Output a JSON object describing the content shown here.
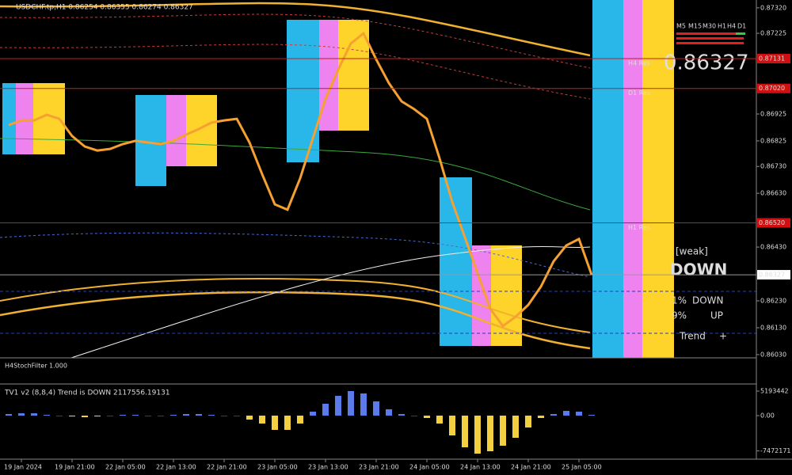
{
  "chart_data": [
    {
      "type": "line",
      "title": "USDCHF.tp,H1  0.86254 0.86355 0.86274 0.86327",
      "categories": [
        null,
        "19 Jan 2024",
        null,
        null,
        null,
        "19 Jan 21:00",
        null,
        null,
        null,
        "22 Jan 05:00",
        null,
        null,
        null,
        "22 Jan 13:00",
        null,
        null,
        null,
        "22 Jan 21:00",
        null,
        null,
        null,
        "23 Jan 05:00",
        null,
        null,
        null,
        "23 Jan 13:00",
        null,
        null,
        null,
        "23 Jan 21:00",
        null,
        null,
        null,
        "24 Jan 05:00",
        null,
        null,
        null,
        "24 Jan 13:00",
        null,
        null,
        null,
        "24 Jan 21:00",
        null,
        null,
        null,
        "25 Jan 05:00",
        null
      ],
      "values": [
        0.86884,
        0.86901,
        0.86901,
        0.86922,
        0.86907,
        0.86843,
        0.86804,
        0.86789,
        0.86795,
        0.86813,
        0.86825,
        0.86819,
        0.86813,
        0.86825,
        0.86848,
        0.86869,
        0.86893,
        0.86901,
        0.86907,
        0.86819,
        0.86701,
        0.86589,
        0.86569,
        0.86686,
        0.86834,
        0.86981,
        0.8709,
        0.87187,
        0.87225,
        0.87128,
        0.8704,
        0.86972,
        0.86943,
        0.86907,
        0.8676,
        0.86598,
        0.86466,
        0.86333,
        0.862,
        0.86136,
        0.86171,
        0.86215,
        0.86283,
        0.86377,
        0.86436,
        0.8646,
        0.86327
      ],
      "color": "#f5a030",
      "ylim": [
        0.86018,
        0.87349
      ],
      "yticks": [
        {
          "value": 0.8732,
          "label": "0.87320"
        },
        {
          "value": 0.87225,
          "label": "0.87225"
        },
        {
          "value": 0.86925,
          "label": "0.86925"
        },
        {
          "value": 0.86825,
          "label": "0.86825"
        },
        {
          "value": 0.8673,
          "label": "0.86730"
        },
        {
          "value": 0.8663,
          "label": "0.86630"
        },
        {
          "value": 0.8643,
          "label": "0.86430"
        },
        {
          "value": 0.8623,
          "label": "0.86230"
        },
        {
          "value": 0.8613,
          "label": "0.86130"
        },
        {
          "value": 0.8603,
          "label": "0.86030"
        }
      ],
      "levels": [
        {
          "name": "H4 Res",
          "value": 0.87131,
          "label": "0.87131"
        },
        {
          "name": "D1 Res",
          "value": 0.8702,
          "label": "0.87020"
        },
        {
          "name": "H1 Res",
          "value": 0.8652,
          "label": "0.86520"
        }
      ],
      "current_price": 0.86327
    },
    {
      "type": "bar",
      "title": "TV1 v2 (8,8,4) Trend is DOWN 2117556.19131",
      "values": [
        335060,
        502590,
        502590,
        167530,
        0,
        -167530,
        -335060,
        -167530,
        0,
        167530,
        167530,
        0,
        0,
        167530,
        335060,
        335060,
        167530,
        0,
        0,
        -837650,
        -1675300,
        -3015540,
        -3015540,
        -1675300,
        837650,
        2512950,
        4188250,
        5193430,
        4690840,
        3015540,
        1340240,
        335060,
        0,
        -502590,
        -1675300,
        -4188250,
        -6701200,
        -8041440,
        -7538850,
        -6366140,
        -4690840,
        -2512950,
        -502590,
        335060,
        1005180,
        837650,
        167530
      ],
      "colors": {
        "positive": "#5b7be8",
        "negative": "#f2d040"
      },
      "ylim": [
        -8879090,
        6366140
      ],
      "yticks": [
        5193442,
        {
          "value": 0,
          "label": "0.00"
        },
        -7472171
      ]
    }
  ],
  "stripe_panel": {
    "label": "H4StochFilter 1.000"
  },
  "info_panel": {
    "timeframes": [
      "M5",
      "M15",
      "M30",
      "H1",
      "H4",
      "D1"
    ],
    "strength": "[weak]",
    "direction": "DOWN",
    "rows": [
      [
        "1%",
        "DOWN"
      ],
      [
        "9%",
        "UP"
      ],
      [
        "Trend",
        "+"
      ]
    ]
  }
}
